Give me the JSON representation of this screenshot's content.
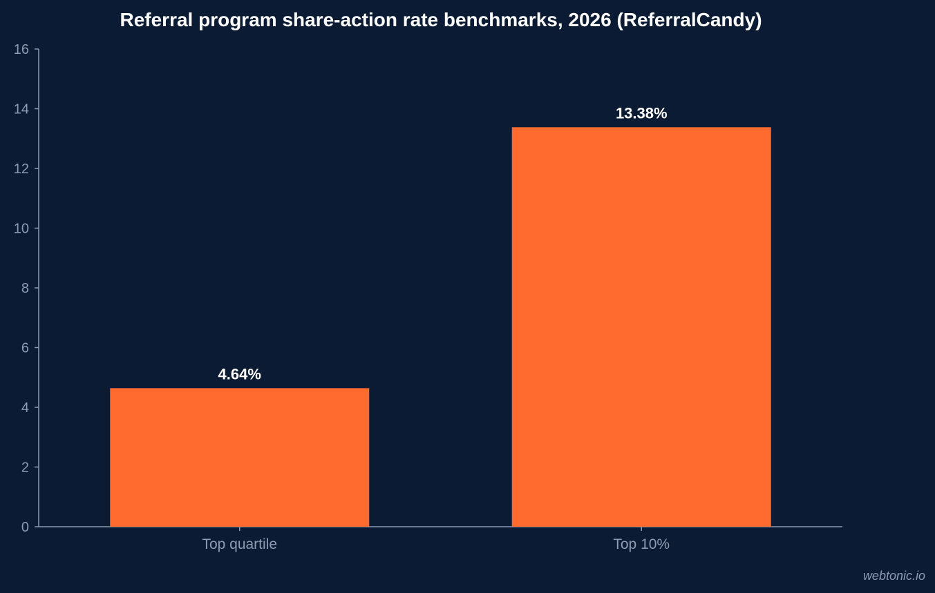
{
  "chart_data": {
    "type": "bar",
    "title": "Referral program share-action rate benchmarks, 2026 (ReferralCandy)",
    "categories": [
      "Top quartile",
      "Top 10%"
    ],
    "values": [
      4.64,
      13.38
    ],
    "data_labels": [
      "4.64%",
      "13.38%"
    ],
    "xlabel": "",
    "ylabel": "",
    "ylim": [
      0,
      16
    ],
    "yticks": [
      0,
      2,
      4,
      6,
      8,
      10,
      12,
      14,
      16
    ],
    "grid": false,
    "bar_color": "#ff6b2f"
  },
  "watermark": "webtonic.io"
}
